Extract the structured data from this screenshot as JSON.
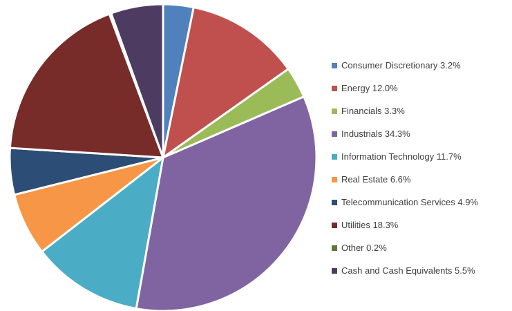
{
  "chart_data": {
    "type": "pie",
    "title": "",
    "legend_position": "right",
    "categories": [
      "Consumer Discretionary 3.2%",
      "Energy 12.0%",
      "Financials 3.3%",
      "Industrials 34.3%",
      "Information Technology 11.7%",
      "Real Estate 6.6%",
      "Telecommunication Services 4.9%",
      "Utilities 18.3%",
      "Other 0.2%",
      "Cash and Cash Equivalents 5.5%"
    ],
    "values": [
      3.2,
      12.0,
      3.3,
      34.3,
      11.7,
      6.6,
      4.9,
      18.3,
      0.2,
      5.5
    ],
    "colors": [
      "#4f81bd",
      "#c0504d",
      "#9bbb59",
      "#8064a2",
      "#4bacc6",
      "#f79646",
      "#2c4d75",
      "#772c2a",
      "#5f7530",
      "#4d3b62"
    ]
  }
}
